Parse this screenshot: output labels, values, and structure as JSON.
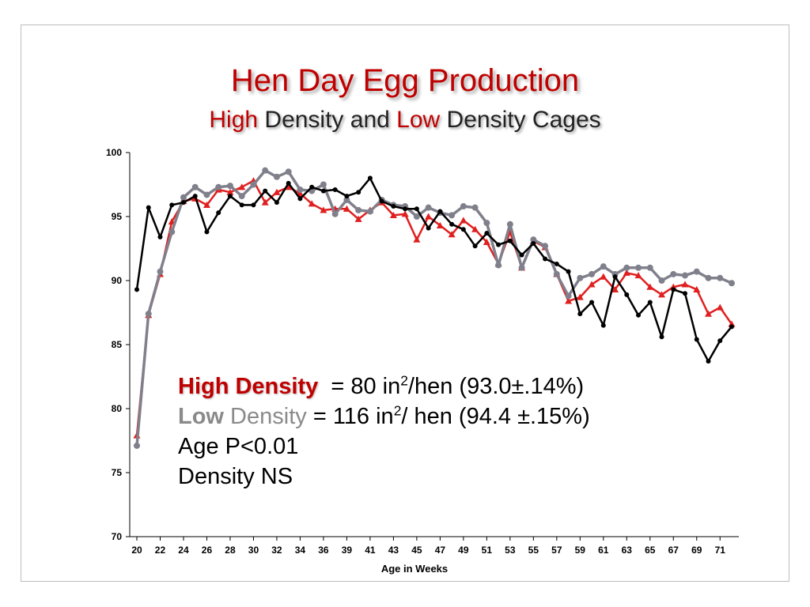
{
  "slide": {
    "title": "Hen Day Egg Production",
    "subtitle_high": "High",
    "subtitle_mid": " Density and ",
    "subtitle_low": "Low",
    "subtitle_end": " Density Cages"
  },
  "notes": {
    "line1_label": "High Density",
    "line1_text_a": "  = 80 in",
    "line1_sup": "2",
    "line1_text_b": "/hen (93.0±.14%)",
    "line2_label_a": "Low",
    "line2_label_b": " Density",
    "line2_text_a": " = 116 in",
    "line2_sup": "2",
    "line2_text_b": "/ hen (94.4 ±.15%)",
    "line3": "Age P<0.01",
    "line4": "Density NS"
  },
  "colors": {
    "high": "#e02020",
    "low": "#80808c",
    "black": "#000000",
    "accent_title": "#c00000"
  },
  "chart_data": {
    "type": "line",
    "title": "",
    "xlabel": "Age in Weeks",
    "ylabel": "",
    "ylim": [
      70,
      100
    ],
    "yticks": [
      70,
      75,
      80,
      85,
      90,
      95,
      100
    ],
    "x_tick_labels": [
      "20",
      "22",
      "24",
      "26",
      "28",
      "30",
      "32",
      "34",
      "36",
      "39",
      "41",
      "43",
      "45",
      "47",
      "49",
      "51",
      "53",
      "55",
      "57",
      "59",
      "61",
      "63",
      "65",
      "67",
      "69",
      "71"
    ],
    "x": [
      "20",
      "21",
      "22",
      "23",
      "24",
      "25",
      "26",
      "27",
      "28",
      "29",
      "30",
      "31",
      "32",
      "33",
      "34",
      "35",
      "36",
      "37",
      "38",
      "39",
      "40",
      "41",
      "42",
      "43",
      "44",
      "45",
      "46",
      "47",
      "48",
      "49",
      "50",
      "51",
      "52",
      "53",
      "54",
      "55",
      "56",
      "57",
      "58",
      "59",
      "60",
      "61",
      "62",
      "63",
      "64",
      "65",
      "66",
      "67",
      "68",
      "69",
      "70",
      "71"
    ],
    "grid": false,
    "legend": "none",
    "series": [
      {
        "values": [
          77.9,
          87.3,
          90.5,
          94.6,
          96.2,
          96.4,
          95.9,
          97.1,
          96.9,
          97.3,
          97.8,
          96.1,
          96.9,
          97.3,
          96.8,
          96.0,
          95.5,
          95.6,
          95.6,
          94.8,
          95.5,
          96.1,
          95.1,
          95.2,
          93.2,
          95.0,
          94.3,
          93.6,
          94.7,
          94.0,
          93.0,
          91.3,
          93.8,
          91.0,
          93.1,
          92.6,
          90.5,
          88.4,
          88.7,
          89.7,
          90.3,
          89.3,
          90.6,
          90.4,
          89.5,
          88.9,
          89.5,
          89.7,
          89.3,
          87.4,
          87.9,
          86.6
        ],
        "color": "#e02020",
        "marker": "triangle"
      },
      {
        "values": [
          77.1,
          87.4,
          90.7,
          93.8,
          96.5,
          97.3,
          96.7,
          97.3,
          97.4,
          96.6,
          97.5,
          98.6,
          98.1,
          98.5,
          97.1,
          97.0,
          97.5,
          95.2,
          96.3,
          95.5,
          95.4,
          96.3,
          95.9,
          95.8,
          95.0,
          95.7,
          95.3,
          95.1,
          95.8,
          95.7,
          94.5,
          91.2,
          94.4,
          91.0,
          93.2,
          92.7,
          90.5,
          88.8,
          90.2,
          90.5,
          91.1,
          90.5,
          91.0,
          91.0,
          91.0,
          90.0,
          90.5,
          90.4,
          90.7,
          90.2,
          90.2,
          89.8
        ],
        "color": "#80808c",
        "marker": "circle"
      },
      {
        "values": [
          89.3,
          95.7,
          93.4,
          95.9,
          96.1,
          96.6,
          93.8,
          95.3,
          96.6,
          95.9,
          95.9,
          97.0,
          96.1,
          97.6,
          96.4,
          97.3,
          97.0,
          97.1,
          96.6,
          96.9,
          98.0,
          96.2,
          95.8,
          95.6,
          95.6,
          94.1,
          95.4,
          94.4,
          94.0,
          92.7,
          93.7,
          92.8,
          93.1,
          92.0,
          92.9,
          91.7,
          91.3,
          90.7,
          87.4,
          88.3,
          86.5,
          90.3,
          88.9,
          87.3,
          88.3,
          85.6,
          89.3,
          89.0,
          85.4,
          83.7,
          85.3,
          86.4
        ],
        "color": "#000000",
        "marker": "circle"
      }
    ]
  }
}
